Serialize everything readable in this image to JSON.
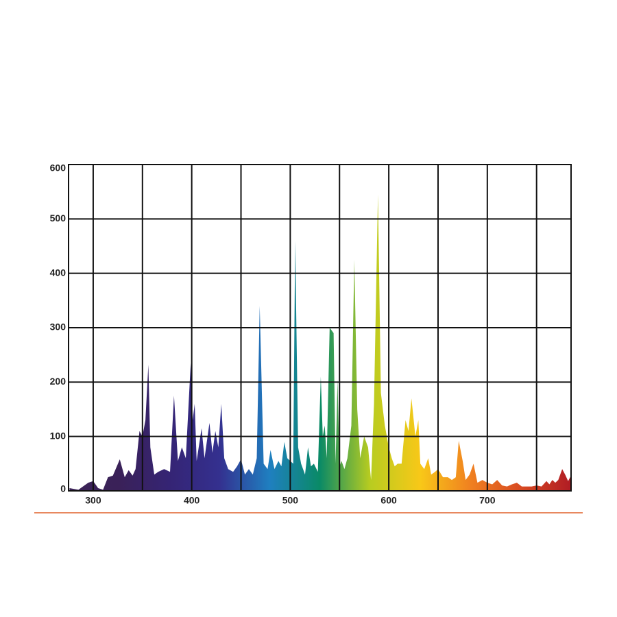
{
  "chart_data": {
    "type": "area",
    "xlim": [
      275,
      785
    ],
    "ylim": [
      0,
      600
    ],
    "xticks": [
      300,
      400,
      500,
      600,
      700
    ],
    "xminor_ticks": [
      350,
      450,
      550,
      650,
      750
    ],
    "yticks": [
      0,
      100,
      200,
      300,
      400,
      500,
      600
    ],
    "grid": true,
    "colors": [
      "#3b2357",
      "#3a2158",
      "#352474",
      "#34308f",
      "#1f7fc0",
      "#0a8a66",
      "#b8cc20",
      "#f8c818",
      "#f08020",
      "#d84a22",
      "#b01c24"
    ],
    "x": [
      276,
      285,
      295,
      300,
      305,
      310,
      315,
      320,
      327,
      332,
      336,
      340,
      343,
      347,
      350,
      353,
      356,
      358,
      362,
      366,
      372,
      378,
      382,
      386,
      390,
      394,
      399,
      401,
      403,
      405,
      410,
      413,
      418,
      421,
      424,
      427,
      430,
      433,
      437,
      442,
      446,
      450,
      454,
      458,
      462,
      466,
      469,
      473,
      477,
      480,
      484,
      488,
      491,
      494,
      497,
      500,
      503,
      505,
      508,
      511,
      515,
      518,
      521,
      524,
      528,
      531,
      533,
      535,
      537,
      540,
      544,
      546,
      548,
      550,
      552,
      555,
      558,
      562,
      565,
      568,
      571,
      575,
      579,
      582,
      585,
      589,
      592,
      596,
      600,
      603,
      606,
      609,
      613,
      617,
      620,
      623,
      627,
      630,
      632,
      636,
      640,
      643,
      647,
      650,
      655,
      660,
      664,
      668,
      671,
      675,
      678,
      682,
      686,
      690,
      695,
      700,
      705,
      710,
      715,
      720,
      725,
      730,
      735,
      740,
      745,
      750,
      755,
      760,
      763,
      766,
      769,
      772,
      776,
      779,
      782,
      785
    ],
    "values": [
      5,
      2,
      15,
      18,
      5,
      2,
      25,
      28,
      58,
      25,
      38,
      28,
      40,
      110,
      100,
      130,
      232,
      80,
      30,
      35,
      40,
      35,
      175,
      55,
      80,
      60,
      235,
      130,
      160,
      55,
      115,
      60,
      125,
      70,
      110,
      80,
      160,
      60,
      40,
      35,
      45,
      58,
      30,
      40,
      30,
      60,
      340,
      50,
      40,
      75,
      40,
      55,
      45,
      90,
      60,
      55,
      50,
      460,
      80,
      50,
      30,
      80,
      45,
      50,
      35,
      210,
      100,
      120,
      60,
      300,
      290,
      50,
      205,
      45,
      55,
      40,
      60,
      120,
      425,
      150,
      60,
      100,
      80,
      20,
      160,
      545,
      180,
      120,
      80,
      60,
      45,
      50,
      50,
      130,
      110,
      170,
      100,
      130,
      50,
      40,
      60,
      30,
      35,
      40,
      25,
      25,
      20,
      25,
      92,
      55,
      20,
      30,
      50,
      15,
      20,
      15,
      12,
      20,
      10,
      8,
      12,
      15,
      8,
      8,
      8,
      10,
      8,
      18,
      12,
      20,
      15,
      20,
      40,
      30,
      18,
      28
    ]
  }
}
